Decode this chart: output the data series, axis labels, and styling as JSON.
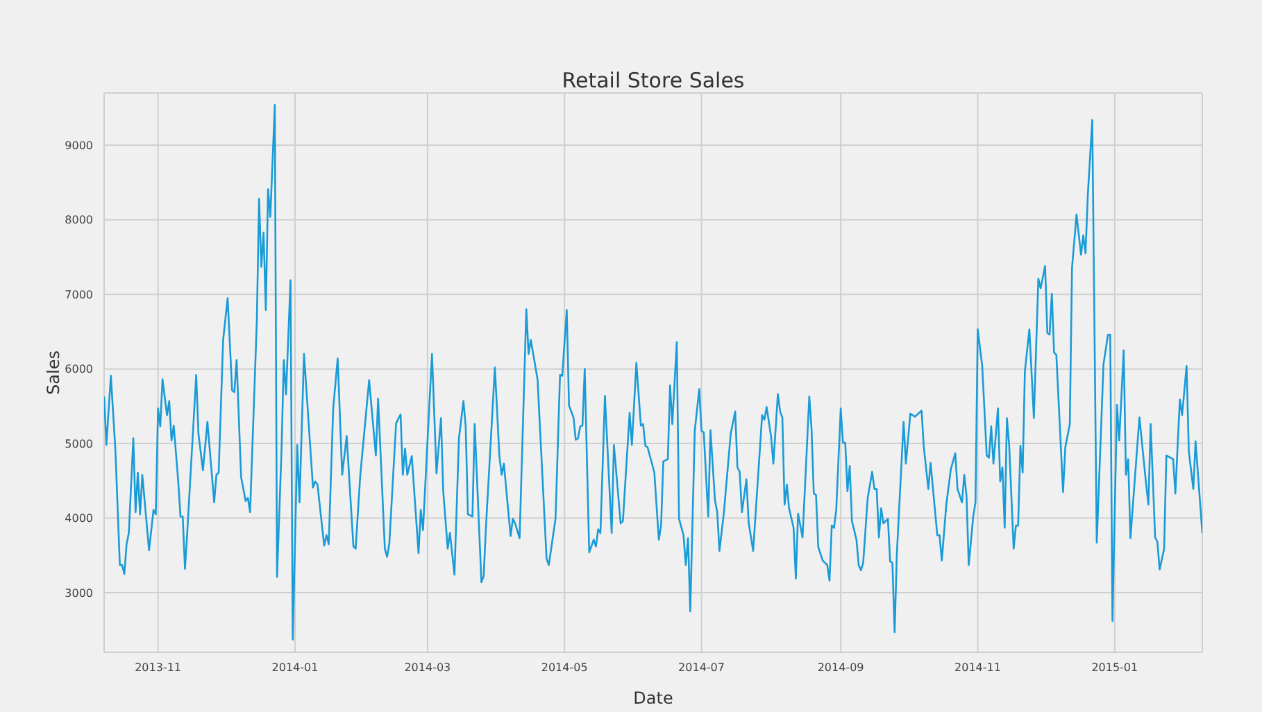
{
  "chart_data": {
    "type": "line",
    "title": "Retail Store Sales",
    "xlabel": "Date",
    "ylabel": "Sales",
    "grid": true,
    "marker": "none",
    "line_style": "solid",
    "xlim": [
      "2013-10-08",
      "2015-02-09"
    ],
    "ylim": [
      2200,
      9700
    ],
    "xticks": [
      {
        "value": "2013-11-01",
        "label": "2013-11"
      },
      {
        "value": "2014-01-01",
        "label": "2014-01"
      },
      {
        "value": "2014-03-01",
        "label": "2014-03"
      },
      {
        "value": "2014-05-01",
        "label": "2014-05"
      },
      {
        "value": "2014-07-01",
        "label": "2014-07"
      },
      {
        "value": "2014-09-01",
        "label": "2014-09"
      },
      {
        "value": "2014-11-01",
        "label": "2014-11"
      },
      {
        "value": "2015-01-01",
        "label": "2015-01"
      }
    ],
    "yticks": [
      3000,
      4000,
      5000,
      6000,
      7000,
      8000,
      9000
    ],
    "x": [
      "2013-10-08",
      "2013-10-09",
      "2013-10-11",
      "2013-10-13",
      "2013-10-15",
      "2013-10-16",
      "2013-10-17",
      "2013-10-18",
      "2013-10-19",
      "2013-10-21",
      "2013-10-22",
      "2013-10-23",
      "2013-10-24",
      "2013-10-25",
      "2013-10-28",
      "2013-10-30",
      "2013-10-31",
      "2013-11-01",
      "2013-11-02",
      "2013-11-03",
      "2013-11-05",
      "2013-11-06",
      "2013-11-07",
      "2013-11-08",
      "2013-11-10",
      "2013-11-11",
      "2013-11-12",
      "2013-11-13",
      "2013-11-14",
      "2013-11-18",
      "2013-11-19",
      "2013-11-21",
      "2013-11-23",
      "2013-11-26",
      "2013-11-27",
      "2013-11-28",
      "2013-11-30",
      "2013-12-02",
      "2013-12-04",
      "2013-12-05",
      "2013-12-06",
      "2013-12-08",
      "2013-12-10",
      "2013-12-11",
      "2013-12-12",
      "2013-12-15",
      "2013-12-16",
      "2013-12-17",
      "2013-12-18",
      "2013-12-19",
      "2013-12-20",
      "2013-12-21",
      "2013-12-23",
      "2013-12-24",
      "2013-12-26",
      "2013-12-27",
      "2013-12-28",
      "2013-12-30",
      "2013-12-31",
      "2014-01-02",
      "2014-01-03",
      "2014-01-05",
      "2014-01-09",
      "2014-01-10",
      "2014-01-11",
      "2014-01-14",
      "2014-01-15",
      "2014-01-16",
      "2014-01-18",
      "2014-01-20",
      "2014-01-22",
      "2014-01-24",
      "2014-01-27",
      "2014-01-28",
      "2014-01-30",
      "2014-02-03",
      "2014-02-06",
      "2014-02-07",
      "2014-02-10",
      "2014-02-11",
      "2014-02-12",
      "2014-02-15",
      "2014-02-17",
      "2014-02-18",
      "2014-02-19",
      "2014-02-20",
      "2014-02-22",
      "2014-02-25",
      "2014-02-26",
      "2014-02-27",
      "2014-03-01",
      "2014-03-03",
      "2014-03-05",
      "2014-03-07",
      "2014-03-08",
      "2014-03-10",
      "2014-03-11",
      "2014-03-13",
      "2014-03-15",
      "2014-03-17",
      "2014-03-18",
      "2014-03-19",
      "2014-03-21",
      "2014-03-22",
      "2014-03-25",
      "2014-03-26",
      "2014-03-27",
      "2014-03-31",
      "2014-04-02",
      "2014-04-03",
      "2014-04-04",
      "2014-04-07",
      "2014-04-08",
      "2014-04-09",
      "2014-04-11",
      "2014-04-14",
      "2014-04-15",
      "2014-04-16",
      "2014-04-19",
      "2014-04-23",
      "2014-04-24",
      "2014-04-27",
      "2014-04-29",
      "2014-04-30",
      "2014-05-02",
      "2014-05-03",
      "2014-05-05",
      "2014-05-06",
      "2014-05-07",
      "2014-05-08",
      "2014-05-09",
      "2014-05-10",
      "2014-05-12",
      "2014-05-14",
      "2014-05-15",
      "2014-05-16",
      "2014-05-17",
      "2014-05-19",
      "2014-05-22",
      "2014-05-23",
      "2014-05-26",
      "2014-05-27",
      "2014-05-30",
      "2014-05-31",
      "2014-06-02",
      "2014-06-04",
      "2014-06-05",
      "2014-06-06",
      "2014-06-07",
      "2014-06-10",
      "2014-06-12",
      "2014-06-13",
      "2014-06-14",
      "2014-06-16",
      "2014-06-17",
      "2014-06-18",
      "2014-06-20",
      "2014-06-21",
      "2014-06-23",
      "2014-06-24",
      "2014-06-25",
      "2014-06-26",
      "2014-06-28",
      "2014-06-30",
      "2014-07-01",
      "2014-07-02",
      "2014-07-04",
      "2014-07-05",
      "2014-07-07",
      "2014-07-08",
      "2014-07-09",
      "2014-07-11",
      "2014-07-14",
      "2014-07-16",
      "2014-07-17",
      "2014-07-18",
      "2014-07-19",
      "2014-07-21",
      "2014-07-22",
      "2014-07-24",
      "2014-07-28",
      "2014-07-29",
      "2014-07-30",
      "2014-08-01",
      "2014-08-02",
      "2014-08-04",
      "2014-08-05",
      "2014-08-06",
      "2014-08-07",
      "2014-08-08",
      "2014-08-09",
      "2014-08-11",
      "2014-08-12",
      "2014-08-13",
      "2014-08-15",
      "2014-08-18",
      "2014-08-19",
      "2014-08-20",
      "2014-08-21",
      "2014-08-22",
      "2014-08-24",
      "2014-08-26",
      "2014-08-27",
      "2014-08-28",
      "2014-08-29",
      "2014-08-30",
      "2014-09-01",
      "2014-09-02",
      "2014-09-03",
      "2014-09-04",
      "2014-09-05",
      "2014-09-06",
      "2014-09-08",
      "2014-09-09",
      "2014-09-10",
      "2014-09-11",
      "2014-09-13",
      "2014-09-15",
      "2014-09-16",
      "2014-09-17",
      "2014-09-18",
      "2014-09-19",
      "2014-09-20",
      "2014-09-22",
      "2014-09-23",
      "2014-09-24",
      "2014-09-25",
      "2014-09-26",
      "2014-09-29",
      "2014-09-30",
      "2014-10-02",
      "2014-10-04",
      "2014-10-07",
      "2014-10-08",
      "2014-10-10",
      "2014-10-11",
      "2014-10-14",
      "2014-10-15",
      "2014-10-16",
      "2014-10-18",
      "2014-10-20",
      "2014-10-22",
      "2014-10-23",
      "2014-10-25",
      "2014-10-26",
      "2014-10-27",
      "2014-10-28",
      "2014-10-30",
      "2014-10-31",
      "2014-11-01",
      "2014-11-03",
      "2014-11-05",
      "2014-11-06",
      "2014-11-07",
      "2014-11-08",
      "2014-11-10",
      "2014-11-11",
      "2014-11-12",
      "2014-11-13",
      "2014-11-14",
      "2014-11-15",
      "2014-11-17",
      "2014-11-18",
      "2014-11-19",
      "2014-11-20",
      "2014-11-21",
      "2014-11-22",
      "2014-11-24",
      "2014-11-26",
      "2014-11-28",
      "2014-11-29",
      "2014-12-01",
      "2014-12-02",
      "2014-12-03",
      "2014-12-04",
      "2014-12-05",
      "2014-12-06",
      "2014-12-09",
      "2014-12-10",
      "2014-12-12",
      "2014-12-13",
      "2014-12-15",
      "2014-12-17",
      "2014-12-18",
      "2014-12-19",
      "2014-12-20",
      "2014-12-22",
      "2014-12-24",
      "2014-12-27",
      "2014-12-29",
      "2014-12-30",
      "2014-12-31",
      "2015-01-02",
      "2015-01-03",
      "2015-01-05",
      "2015-01-06",
      "2015-01-07",
      "2015-01-08",
      "2015-01-12",
      "2015-01-15",
      "2015-01-16",
      "2015-01-17",
      "2015-01-19",
      "2015-01-20",
      "2015-01-21",
      "2015-01-23",
      "2015-01-24",
      "2015-01-27",
      "2015-01-28",
      "2015-01-30",
      "2015-01-31",
      "2015-02-02",
      "2015-02-03",
      "2015-02-05",
      "2015-02-06",
      "2015-02-09"
    ],
    "series": [
      {
        "color": "#1a9bd7",
        "values": [
          5630,
          4980,
          5910,
          4920,
          3370,
          3370,
          3250,
          3650,
          3800,
          5070,
          4080,
          4610,
          4050,
          4580,
          3570,
          4110,
          4050,
          5470,
          5230,
          5860,
          5380,
          5570,
          5040,
          5240,
          4490,
          4020,
          4020,
          3320,
          3800,
          5920,
          5130,
          4640,
          5290,
          4210,
          4580,
          4610,
          6390,
          6950,
          5710,
          5690,
          6120,
          4550,
          4230,
          4270,
          4080,
          6650,
          8280,
          7370,
          7830,
          6790,
          8410,
          8040,
          9540,
          3210,
          4920,
          6120,
          5660,
          7190,
          2370,
          4980,
          4210,
          6200,
          4410,
          4490,
          4450,
          3630,
          3770,
          3650,
          5470,
          6140,
          4580,
          5100,
          3620,
          3590,
          4550,
          5850,
          4840,
          5600,
          3590,
          3480,
          3660,
          5270,
          5390,
          4580,
          4930,
          4580,
          4830,
          3530,
          4110,
          3840,
          5040,
          6200,
          4600,
          5340,
          4360,
          3590,
          3800,
          3240,
          5070,
          5570,
          5230,
          4050,
          4020,
          5260,
          3140,
          3220,
          3870,
          6020,
          4830,
          4580,
          4730,
          3760,
          3990,
          3930,
          3730,
          6800,
          6200,
          6390,
          5860,
          3460,
          3370,
          3990,
          5920,
          5910,
          6790,
          5510,
          5350,
          5050,
          5070,
          5230,
          5240,
          6000,
          3540,
          3710,
          3620,
          3850,
          3800,
          5640,
          3800,
          4980,
          3930,
          3960,
          5410,
          4980,
          6080,
          5240,
          5260,
          4970,
          4950,
          4610,
          3710,
          3900,
          4760,
          4790,
          5780,
          5260,
          6360,
          3990,
          3770,
          3370,
          3730,
          2750,
          5170,
          5730,
          5170,
          5150,
          4020,
          5180,
          4240,
          4080,
          3560,
          4080,
          5130,
          5430,
          4680,
          4620,
          4080,
          4520,
          3940,
          3560,
          5380,
          5320,
          5490,
          5090,
          4730,
          5660,
          5430,
          5350,
          4180,
          4450,
          4130,
          3870,
          3190,
          4060,
          3740,
          5630,
          5200,
          4330,
          4310,
          3610,
          3430,
          3370,
          3160,
          3900,
          3870,
          4110,
          5470,
          5010,
          5010,
          4360,
          4700,
          3960,
          3710,
          3370,
          3300,
          3400,
          4270,
          4620,
          4390,
          4390,
          3740,
          4130,
          3930,
          3990,
          3420,
          3400,
          2470,
          3530,
          5290,
          4730,
          5400,
          5360,
          5440,
          4950,
          4390,
          4740,
          3770,
          3770,
          3430,
          4180,
          4650,
          4870,
          4390,
          4210,
          4580,
          4300,
          3370,
          4020,
          4210,
          6530,
          6040,
          4840,
          4810,
          5230,
          4730,
          5470,
          4490,
          4680,
          3870,
          5340,
          4980,
          3590,
          3900,
          3900,
          4970,
          4610,
          5970,
          6530,
          5340,
          7210,
          7080,
          7380,
          6480,
          6460,
          7010,
          6220,
          6190,
          4350,
          4950,
          5260,
          7360,
          8070,
          7530,
          7790,
          7550,
          8320,
          9340,
          3670,
          6060,
          6460,
          6460,
          2620,
          5520,
          5040,
          6250,
          4580,
          4790,
          3730,
          5350,
          4450,
          4180,
          5260,
          3740,
          3680,
          3310,
          3590,
          4840,
          4790,
          4330,
          5590,
          5380,
          6040,
          4890,
          4390,
          5030,
          3800
        ]
      }
    ]
  }
}
